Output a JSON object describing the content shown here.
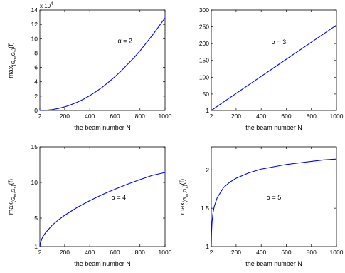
{
  "chart_data": [
    {
      "type": "line",
      "annotation": "α = 2",
      "xlabel": "the beam number N",
      "ylabel_main": "max",
      "ylabel_sub": "(G",
      "ylabel_subsub": "m",
      "ylabel_sub2": ",G",
      "ylabel_subsub2": "s",
      "ylabel_sub3": ")",
      "ylabel_tail": "(f)",
      "xlim": [
        2,
        1000
      ],
      "ylim": [
        0,
        14
      ],
      "xticks": [
        2,
        200,
        400,
        600,
        800,
        1000
      ],
      "yticks": [
        0,
        2,
        4,
        6,
        8,
        10,
        12,
        14
      ],
      "y_multiplier_base": "x 10",
      "y_multiplier_exp": "4",
      "color": "#0000ff",
      "series": [
        {
          "x": [
            2,
            50,
            100,
            150,
            200,
            250,
            300,
            350,
            400,
            450,
            500,
            550,
            600,
            650,
            700,
            750,
            800,
            850,
            900,
            950,
            1000
          ],
          "y": [
            0.0001,
            0.03,
            0.12,
            0.28,
            0.5,
            0.8,
            1.15,
            1.58,
            2.07,
            2.63,
            3.25,
            3.95,
            4.7,
            5.5,
            6.4,
            7.3,
            8.3,
            9.4,
            10.5,
            11.7,
            12.9
          ]
        }
      ]
    },
    {
      "type": "line",
      "annotation": "α = 3",
      "xlabel": "the beam number N",
      "ylabel_main": "",
      "xlim": [
        2,
        1000
      ],
      "ylim": [
        1,
        300
      ],
      "xticks": [
        2,
        200,
        400,
        600,
        800,
        1000
      ],
      "yticks": [
        1,
        50,
        100,
        150,
        200,
        250,
        300
      ],
      "color": "#0000ff",
      "series": [
        {
          "x": [
            2,
            100,
            200,
            300,
            400,
            500,
            600,
            700,
            800,
            900,
            1000
          ],
          "y": [
            1,
            26.4,
            51.8,
            77.2,
            102.6,
            128,
            153.4,
            178.8,
            204.2,
            229.6,
            255
          ]
        }
      ]
    },
    {
      "type": "line",
      "annotation": "α = 4",
      "xlabel": "the beam number N",
      "ylabel_main": "max",
      "ylabel_sub": "(G",
      "ylabel_subsub": "m",
      "ylabel_sub2": ",G",
      "ylabel_subsub2": "s",
      "ylabel_sub3": ")",
      "ylabel_tail": "(f)",
      "xlim": [
        2,
        1000
      ],
      "ylim": [
        1,
        15
      ],
      "xticks": [
        2,
        200,
        400,
        600,
        800,
        1000
      ],
      "yticks": [
        1,
        5,
        10,
        15
      ],
      "color": "#0000ff",
      "series": [
        {
          "x": [
            2,
            10,
            25,
            50,
            100,
            150,
            200,
            300,
            400,
            500,
            600,
            700,
            800,
            900,
            1000
          ],
          "y": [
            1.0,
            1.7,
            2.4,
            3.0,
            4.0,
            4.75,
            5.4,
            6.5,
            7.45,
            8.3,
            9.05,
            9.75,
            10.4,
            11.0,
            11.4
          ]
        }
      ]
    },
    {
      "type": "line",
      "annotation": "α = 5",
      "xlabel": "the beam number N",
      "ylabel_main": "max",
      "ylabel_sub": "(G",
      "ylabel_subsub": "m",
      "ylabel_sub2": ",G",
      "ylabel_subsub2": "s",
      "ylabel_sub3": ")",
      "ylabel_tail": "(f)",
      "xlim": [
        2,
        1000
      ],
      "ylim": [
        1,
        2.3
      ],
      "xticks": [
        2,
        200,
        400,
        600,
        800,
        1000
      ],
      "yticks": [
        1,
        1.5,
        2
      ],
      "color": "#0000ff",
      "series": [
        {
          "x": [
            2,
            4,
            8,
            15,
            25,
            50,
            100,
            150,
            200,
            300,
            400,
            500,
            600,
            700,
            800,
            900,
            1000
          ],
          "y": [
            1.0,
            1.18,
            1.32,
            1.43,
            1.52,
            1.64,
            1.77,
            1.84,
            1.89,
            1.96,
            2.01,
            2.04,
            2.07,
            2.09,
            2.11,
            2.13,
            2.14
          ]
        }
      ]
    }
  ]
}
